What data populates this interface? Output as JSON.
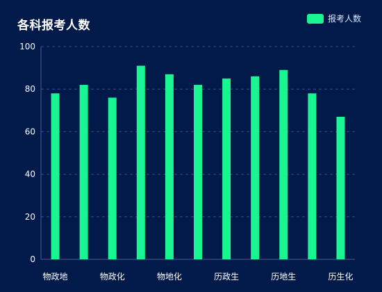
{
  "page": {
    "title": "各科报考人数"
  },
  "legend": {
    "label": "报考人数"
  },
  "colors": {
    "background": "#011a4a",
    "bar": "#19f590",
    "grid": "#2f4f88",
    "axis": "#4b5f90"
  },
  "chart_data": {
    "type": "bar",
    "title": "各科报考人数",
    "categories": [
      "物政地",
      "",
      "物政化",
      "",
      "物地化",
      "",
      "历政生",
      "",
      "历地生",
      "",
      "历生化"
    ],
    "series": [
      {
        "name": "报考人数",
        "values": [
          78,
          82,
          76,
          91,
          87,
          82,
          85,
          86,
          89,
          78,
          67
        ]
      }
    ],
    "ylim": [
      0,
      100
    ],
    "yticks": [
      0,
      20,
      40,
      60,
      80,
      100
    ],
    "grid": true,
    "legend_position": "top-right"
  }
}
